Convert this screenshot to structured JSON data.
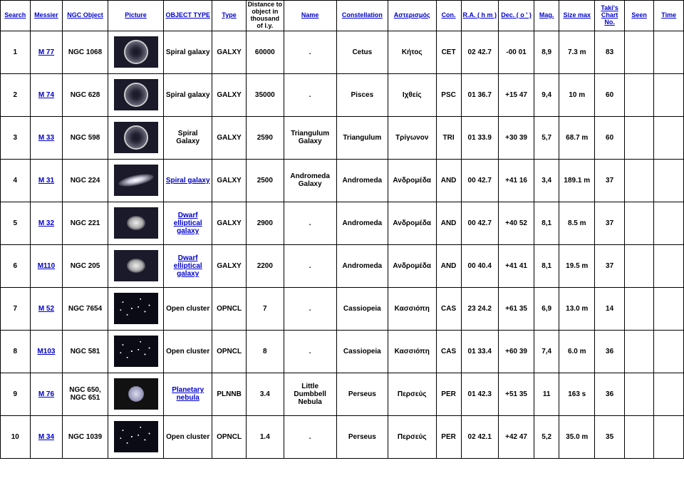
{
  "headers": {
    "search": "Search",
    "messier": "Messier",
    "ngc": "NGC Object",
    "picture": "Picture",
    "objtype": "OBJECT TYPE",
    "type": "Type",
    "dist": "Distance to object in thousand of l.y.",
    "name": "Name",
    "constel": "Constellation",
    "aster": "Αστερισμός",
    "con": "Con.",
    "ra": "R.A. ( h  m )",
    "dec": "Dec. ( o  ' )",
    "mag": "Mag.",
    "size": "Size max",
    "chart": "Taki's Chart No.",
    "seen": "Seen",
    "time": "Time"
  },
  "rows": [
    {
      "n": "1",
      "messier": "M 77",
      "ngc": "NGC 1068",
      "thumb": "spiral",
      "objtype": "Spiral galaxy",
      "objtype_link": false,
      "type": "GALXY",
      "dist": "60000",
      "name": ".",
      "constel": "Cetus",
      "aster": "Κήτος",
      "con": "CET",
      "ra": "02 42.7",
      "dec": "-00 01",
      "mag": "8,9",
      "size": "7.3 m",
      "chart": "83"
    },
    {
      "n": "2",
      "messier": "M 74",
      "ngc": "NGC 628",
      "thumb": "spiral",
      "objtype": "Spiral galaxy",
      "objtype_link": false,
      "type": "GALXY",
      "dist": "35000",
      "name": ".",
      "constel": "Pisces",
      "aster": "Ιχθείς",
      "con": "PSC",
      "ra": "01 36.7",
      "dec": "+15 47",
      "mag": "9,4",
      "size": "10  m",
      "chart": "60"
    },
    {
      "n": "3",
      "messier": "M 33",
      "ngc": "NGC 598",
      "thumb": "spiral",
      "objtype": "Spiral Galaxy",
      "objtype_link": false,
      "type": "GALXY",
      "dist": "2590",
      "name": "Triangulum Galaxy",
      "constel": "Triangulum",
      "aster": "Τρίγωνον",
      "con": "TRI",
      "ra": "01 33.9",
      "dec": "+30 39",
      "mag": "5,7",
      "size": "68.7 m",
      "chart": "60"
    },
    {
      "n": "4",
      "messier": "M 31",
      "ngc": "NGC 224",
      "thumb": "disc",
      "objtype": "Spiral galaxy",
      "objtype_link": true,
      "type": "GALXY",
      "dist": "2500",
      "name": "Andromeda Galaxy",
      "constel": "Andromeda",
      "aster": "Ανδρομέδα",
      "con": "AND",
      "ra": "00 42.7",
      "dec": "+41 16",
      "mag": "3,4",
      "size": "189.1 m",
      "chart": "37"
    },
    {
      "n": "5",
      "messier": "M 32",
      "ngc": "NGC 221",
      "thumb": "ellip",
      "objtype": "Dwarf elliptical galaxy",
      "objtype_link": true,
      "type": "GALXY",
      "dist": "2900",
      "name": ".",
      "constel": "Andromeda",
      "aster": "Ανδρομέδα",
      "con": "AND",
      "ra": "00 42.7",
      "dec": "+40 52",
      "mag": "8,1",
      "size": "8.5 m",
      "chart": "37"
    },
    {
      "n": "6",
      "messier": "M110",
      "ngc": "NGC 205",
      "thumb": "ellip",
      "objtype": "Dwarf elliptical galaxy",
      "objtype_link": true,
      "type": "GALXY",
      "dist": "2200",
      "name": ".",
      "constel": "Andromeda",
      "aster": "Ανδρομέδα",
      "con": "AND",
      "ra": "00 40.4",
      "dec": "+41 41",
      "mag": "8,1",
      "size": "19.5 m",
      "chart": "37"
    },
    {
      "n": "7",
      "messier": "M 52",
      "ngc": "NGC 7654",
      "thumb": "cluster",
      "objtype": "Open cluster",
      "objtype_link": false,
      "type": "OPNCL",
      "dist": "7",
      "name": ".",
      "constel": "Cassiopeia",
      "aster": "Κασσιόπη",
      "con": "CAS",
      "ra": "23 24.2",
      "dec": "+61 35",
      "mag": "6,9",
      "size": "13.0 m",
      "chart": "14"
    },
    {
      "n": "8",
      "messier": "M103",
      "ngc": "NGC 581",
      "thumb": "cluster",
      "objtype": "Open cluster",
      "objtype_link": false,
      "type": "OPNCL",
      "dist": "8",
      "name": ".",
      "constel": "Cassiopeia",
      "aster": "Κασσιόπη",
      "con": "CAS",
      "ra": "01 33.4",
      "dec": "+60 39",
      "mag": "7,4",
      "size": "6.0 m",
      "chart": "36"
    },
    {
      "n": "9",
      "messier": "M 76",
      "ngc": "NGC 650, NGC 651",
      "thumb": "nebula",
      "objtype": "Planetary nebula",
      "objtype_link": true,
      "type": "PLNNB",
      "dist": "3.4",
      "name": "Little Dumbbell Nebula",
      "constel": "Perseus",
      "aster": "Περσεύς",
      "con": "PER",
      "ra": "01 42.3",
      "dec": "+51 35",
      "mag": "11",
      "size": "163  s",
      "chart": "36"
    },
    {
      "n": "10",
      "messier": "M 34",
      "ngc": "NGC 1039",
      "thumb": "cluster",
      "objtype": "Open cluster",
      "objtype_link": false,
      "type": "OPNCL",
      "dist": "1.4",
      "name": ".",
      "constel": "Perseus",
      "aster": "Περσεύς",
      "con": "PER",
      "ra": "02 42.1",
      "dec": "+42 47",
      "mag": "5,2",
      "size": "35.0 m",
      "chart": "35"
    }
  ],
  "link_headers": [
    "search",
    "messier",
    "ngc",
    "picture",
    "objtype",
    "type",
    "name",
    "constel",
    "aster",
    "con",
    "ra",
    "dec",
    "mag",
    "size",
    "chart",
    "seen",
    "time"
  ]
}
